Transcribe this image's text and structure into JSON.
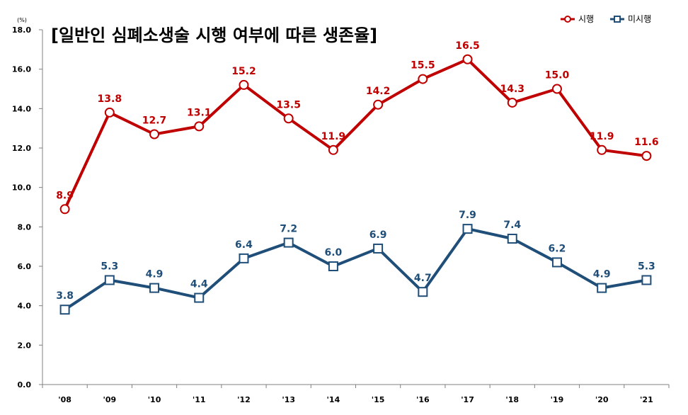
{
  "chart_data": {
    "type": "line",
    "title": "[일반인 심폐소생술 시행 여부에 따른 생존율]",
    "unit_label": "(%)",
    "xlabel": "",
    "ylabel": "",
    "categories": [
      "'08",
      "'09",
      "'10",
      "'11",
      "'12",
      "'13",
      "'14",
      "'15",
      "'16",
      "'17",
      "'18",
      "'19",
      "'20",
      "'21"
    ],
    "y_ticks": [
      "0.0",
      "2.0",
      "4.0",
      "6.0",
      "8.0",
      "10.0",
      "12.0",
      "14.0",
      "16.0",
      "18.0"
    ],
    "ylim": [
      0,
      18
    ],
    "grid": false,
    "legend_position": "top-right",
    "series": [
      {
        "name": "시행",
        "color": "#c00000",
        "marker": "circle",
        "values": [
          8.9,
          13.8,
          12.7,
          13.1,
          15.2,
          13.5,
          11.9,
          14.2,
          15.5,
          16.5,
          14.3,
          15.0,
          11.9,
          11.6
        ],
        "labels": [
          "8.9",
          "13.8",
          "12.7",
          "13.1",
          "15.2",
          "13.5",
          "11.9",
          "14.2",
          "15.5",
          "16.5",
          "14.3",
          "15.0",
          "11.9",
          "11.6"
        ]
      },
      {
        "name": "미시행",
        "color": "#1f4e79",
        "marker": "square",
        "values": [
          3.8,
          5.3,
          4.9,
          4.4,
          6.4,
          7.2,
          6.0,
          6.9,
          4.7,
          7.9,
          7.4,
          6.2,
          4.9,
          5.3
        ],
        "labels": [
          "3.8",
          "5.3",
          "4.9",
          "4.4",
          "6.4",
          "7.2",
          "6.0",
          "6.9",
          "4.7",
          "7.9",
          "7.4",
          "6.2",
          "4.9",
          "5.3"
        ]
      }
    ]
  }
}
